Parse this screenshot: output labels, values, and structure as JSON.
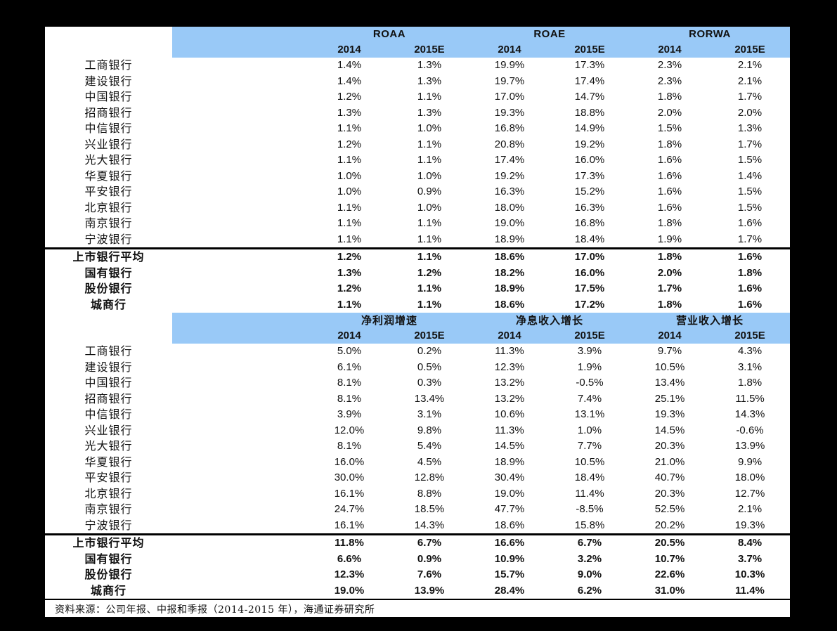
{
  "palette": {
    "page_background": "#000000",
    "panel_background": "#ffffff",
    "header_blue": "#99C9F7",
    "text_color": "#111111"
  },
  "tables": [
    {
      "name": "returns",
      "groups": [
        "ROAA",
        "ROAE",
        "RORWA"
      ],
      "years": [
        "2014",
        "2015E",
        "2014",
        "2015E",
        "2014",
        "2015E"
      ],
      "rows": [
        {
          "label": "工商银行",
          "values": [
            "1.4%",
            "1.3%",
            "19.9%",
            "17.3%",
            "2.3%",
            "2.1%"
          ]
        },
        {
          "label": "建设银行",
          "values": [
            "1.4%",
            "1.3%",
            "19.7%",
            "17.4%",
            "2.3%",
            "2.1%"
          ]
        },
        {
          "label": "中国银行",
          "values": [
            "1.2%",
            "1.1%",
            "17.0%",
            "14.7%",
            "1.8%",
            "1.7%"
          ]
        },
        {
          "label": "招商银行",
          "values": [
            "1.3%",
            "1.3%",
            "19.3%",
            "18.8%",
            "2.0%",
            "2.0%"
          ]
        },
        {
          "label": "中信银行",
          "values": [
            "1.1%",
            "1.0%",
            "16.8%",
            "14.9%",
            "1.5%",
            "1.3%"
          ]
        },
        {
          "label": "兴业银行",
          "values": [
            "1.2%",
            "1.1%",
            "20.8%",
            "19.2%",
            "1.8%",
            "1.7%"
          ]
        },
        {
          "label": "光大银行",
          "values": [
            "1.1%",
            "1.1%",
            "17.4%",
            "16.0%",
            "1.6%",
            "1.5%"
          ]
        },
        {
          "label": "华夏银行",
          "values": [
            "1.0%",
            "1.0%",
            "19.2%",
            "17.3%",
            "1.6%",
            "1.4%"
          ]
        },
        {
          "label": "平安银行",
          "values": [
            "1.0%",
            "0.9%",
            "16.3%",
            "15.2%",
            "1.6%",
            "1.5%"
          ]
        },
        {
          "label": "北京银行",
          "values": [
            "1.1%",
            "1.0%",
            "18.0%",
            "16.3%",
            "1.6%",
            "1.5%"
          ]
        },
        {
          "label": "南京银行",
          "values": [
            "1.1%",
            "1.1%",
            "19.0%",
            "16.8%",
            "1.8%",
            "1.6%"
          ]
        },
        {
          "label": "宁波银行",
          "values": [
            "1.1%",
            "1.1%",
            "18.9%",
            "18.4%",
            "1.9%",
            "1.7%"
          ]
        }
      ],
      "summary": [
        {
          "label": "上市银行平均",
          "values": [
            "1.2%",
            "1.1%",
            "18.6%",
            "17.0%",
            "1.8%",
            "1.6%"
          ]
        },
        {
          "label": "国有银行",
          "values": [
            "1.3%",
            "1.2%",
            "18.2%",
            "16.0%",
            "2.0%",
            "1.8%"
          ]
        },
        {
          "label": "股份银行",
          "values": [
            "1.2%",
            "1.1%",
            "18.9%",
            "17.5%",
            "1.7%",
            "1.6%"
          ]
        },
        {
          "label": "城商行",
          "values": [
            "1.1%",
            "1.1%",
            "18.6%",
            "17.2%",
            "1.8%",
            "1.6%"
          ]
        }
      ]
    },
    {
      "name": "growth",
      "groups": [
        "净利润增速",
        "净息收入增长",
        "营业收入增长"
      ],
      "years": [
        "2014",
        "2015E",
        "2014",
        "2015E",
        "2014",
        "2015E"
      ],
      "rows": [
        {
          "label": "工商银行",
          "values": [
            "5.0%",
            "0.2%",
            "11.3%",
            "3.9%",
            "9.7%",
            "4.3%"
          ]
        },
        {
          "label": "建设银行",
          "values": [
            "6.1%",
            "0.5%",
            "12.3%",
            "1.9%",
            "10.5%",
            "3.1%"
          ]
        },
        {
          "label": "中国银行",
          "values": [
            "8.1%",
            "0.3%",
            "13.2%",
            "-0.5%",
            "13.4%",
            "1.8%"
          ]
        },
        {
          "label": "招商银行",
          "values": [
            "8.1%",
            "13.4%",
            "13.2%",
            "7.4%",
            "25.1%",
            "11.5%"
          ]
        },
        {
          "label": "中信银行",
          "values": [
            "3.9%",
            "3.1%",
            "10.6%",
            "13.1%",
            "19.3%",
            "14.3%"
          ]
        },
        {
          "label": "兴业银行",
          "values": [
            "12.0%",
            "9.8%",
            "11.3%",
            "1.0%",
            "14.5%",
            "-0.6%"
          ]
        },
        {
          "label": "光大银行",
          "values": [
            "8.1%",
            "5.4%",
            "14.5%",
            "7.7%",
            "20.3%",
            "13.9%"
          ]
        },
        {
          "label": "华夏银行",
          "values": [
            "16.0%",
            "4.5%",
            "18.9%",
            "10.5%",
            "21.0%",
            "9.9%"
          ]
        },
        {
          "label": "平安银行",
          "values": [
            "30.0%",
            "12.8%",
            "30.4%",
            "18.4%",
            "40.7%",
            "18.0%"
          ]
        },
        {
          "label": "北京银行",
          "values": [
            "16.1%",
            "8.8%",
            "19.0%",
            "11.4%",
            "20.3%",
            "12.7%"
          ]
        },
        {
          "label": "南京银行",
          "values": [
            "24.7%",
            "18.5%",
            "47.7%",
            "-8.5%",
            "52.5%",
            "2.1%"
          ]
        },
        {
          "label": "宁波银行",
          "values": [
            "16.1%",
            "14.3%",
            "18.6%",
            "15.8%",
            "20.2%",
            "19.3%"
          ]
        }
      ],
      "summary": [
        {
          "label": "上市银行平均",
          "values": [
            "11.8%",
            "6.7%",
            "16.6%",
            "6.7%",
            "20.5%",
            "8.4%"
          ]
        },
        {
          "label": "国有银行",
          "values": [
            "6.6%",
            "0.9%",
            "10.9%",
            "3.2%",
            "10.7%",
            "3.7%"
          ]
        },
        {
          "label": "股份银行",
          "values": [
            "12.3%",
            "7.6%",
            "15.7%",
            "9.0%",
            "22.6%",
            "10.3%"
          ]
        },
        {
          "label": "城商行",
          "values": [
            "19.0%",
            "13.9%",
            "28.4%",
            "6.2%",
            "31.0%",
            "11.4%"
          ]
        }
      ]
    }
  ],
  "footer": {
    "source": "资料来源：公司年报、中报和季报（2014-2015 年），海通证券研究所"
  }
}
